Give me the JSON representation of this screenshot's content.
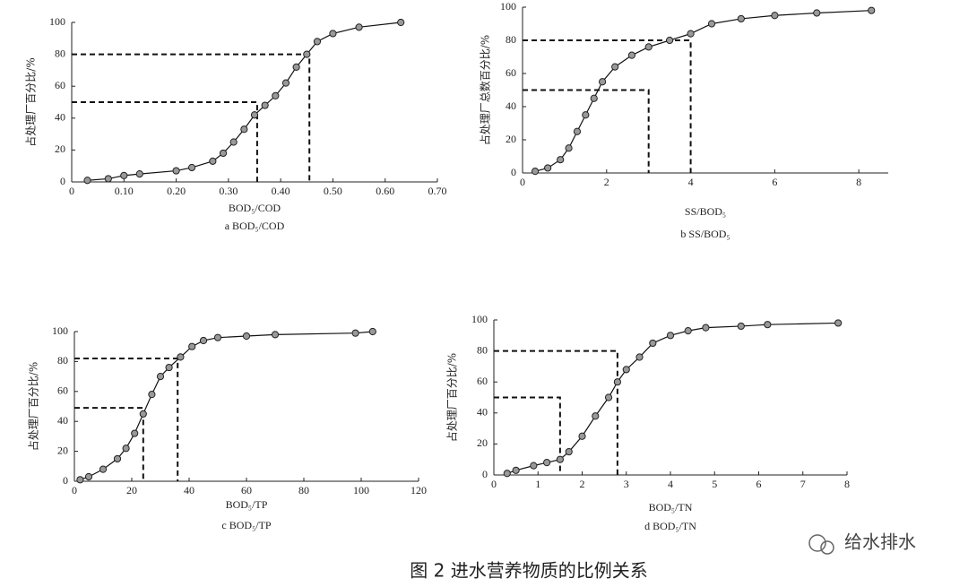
{
  "caption": "图 2 进水营养物质的比例关系",
  "watermark": "给水排水",
  "chart_data": [
    {
      "type": "line",
      "subtitle": "a BOD₅/COD",
      "x_label": "BOD₅/COD",
      "y_label": "占处理厂百分比/%",
      "x": [
        0.03,
        0.07,
        0.1,
        0.13,
        0.2,
        0.23,
        0.27,
        0.29,
        0.31,
        0.33,
        0.35,
        0.37,
        0.39,
        0.41,
        0.43,
        0.45,
        0.47,
        0.5,
        0.55,
        0.63
      ],
      "values": [
        1,
        2,
        4,
        5,
        7,
        9,
        13,
        18,
        25,
        33,
        42,
        48,
        54,
        62,
        72,
        80,
        88,
        93,
        97,
        100
      ],
      "xlim": [
        0,
        0.7
      ],
      "ylim": [
        0,
        100
      ],
      "xticks": [
        0,
        {
          "value": 0.1,
          "label": "0.10"
        },
        {
          "value": 0.2,
          "label": "0.20"
        },
        {
          "value": 0.3,
          "label": "0.30"
        },
        {
          "value": 0.4,
          "label": "0.40"
        },
        {
          "value": 0.5,
          "label": "0.50"
        },
        {
          "value": 0.6,
          "label": "0.60"
        },
        {
          "value": 0.7,
          "label": "0.70"
        }
      ],
      "yticks": [
        0,
        20,
        40,
        60,
        80,
        100
      ],
      "reference_lines": [
        {
          "x": 0.355,
          "y": 50
        },
        {
          "x": 0.455,
          "y": 80
        }
      ]
    },
    {
      "type": "line",
      "subtitle": "b SS/BOD₅",
      "x_label": "SS/BOD₅",
      "y_label": "占处理厂总数百分比/%",
      "x": [
        0.3,
        0.6,
        0.9,
        1.1,
        1.3,
        1.5,
        1.7,
        1.9,
        2.2,
        2.6,
        3,
        3.5,
        4,
        4.5,
        5.2,
        6,
        7,
        8.3
      ],
      "values": [
        1,
        3,
        8,
        15,
        25,
        35,
        45,
        55,
        64,
        71,
        76,
        80,
        84,
        90,
        93,
        95,
        96.5,
        98
      ],
      "xlim": [
        0,
        8.7
      ],
      "ylim": [
        0,
        100
      ],
      "xticks": [
        0,
        2,
        4,
        6,
        8
      ],
      "yticks": [
        0,
        20,
        40,
        60,
        80,
        100
      ],
      "reference_lines": [
        {
          "x": 3,
          "y": 50
        },
        {
          "x": 4,
          "y": 80
        }
      ]
    },
    {
      "type": "line",
      "subtitle": "c BOD₅/TP",
      "x_label": "BOD₅/TP",
      "y_label": "占处理厂百分比/%",
      "x": [
        2,
        5,
        10,
        15,
        18,
        21,
        24,
        27,
        30,
        33,
        37,
        41,
        45,
        50,
        60,
        70,
        98,
        104
      ],
      "values": [
        1,
        3,
        8,
        15,
        22,
        32,
        45,
        58,
        70,
        76,
        83,
        90,
        94,
        96,
        97,
        98,
        99,
        100
      ],
      "xlim": [
        0,
        120
      ],
      "ylim": [
        0,
        100
      ],
      "xticks": [
        0,
        20,
        40,
        60,
        80,
        100,
        120
      ],
      "yticks": [
        0,
        20,
        40,
        60,
        80,
        100
      ],
      "reference_lines": [
        {
          "x": 24,
          "y": 49
        },
        {
          "x": 36,
          "y": 82
        }
      ]
    },
    {
      "type": "line",
      "subtitle": "d BOD₅/TN",
      "x_label": "BOD₅/TN",
      "y_label": "占处理厂百分比/%",
      "x": [
        0.3,
        0.5,
        0.9,
        1.2,
        1.5,
        1.7,
        2,
        2.3,
        2.6,
        2.8,
        3,
        3.3,
        3.6,
        4,
        4.4,
        4.8,
        5.6,
        6.2,
        7.8
      ],
      "values": [
        1,
        3,
        6,
        8,
        10,
        15,
        25,
        38,
        50,
        60,
        68,
        76,
        85,
        90,
        93,
        95,
        96,
        97,
        98
      ],
      "xlim": [
        0,
        8
      ],
      "ylim": [
        0,
        100
      ],
      "xticks": [
        0,
        1,
        2,
        3,
        4,
        5,
        6,
        7,
        8
      ],
      "yticks": [
        0,
        20,
        40,
        60,
        80,
        100
      ],
      "reference_lines": [
        {
          "x": 1.5,
          "y": 50
        },
        {
          "x": 2.8,
          "y": 80
        }
      ]
    }
  ]
}
